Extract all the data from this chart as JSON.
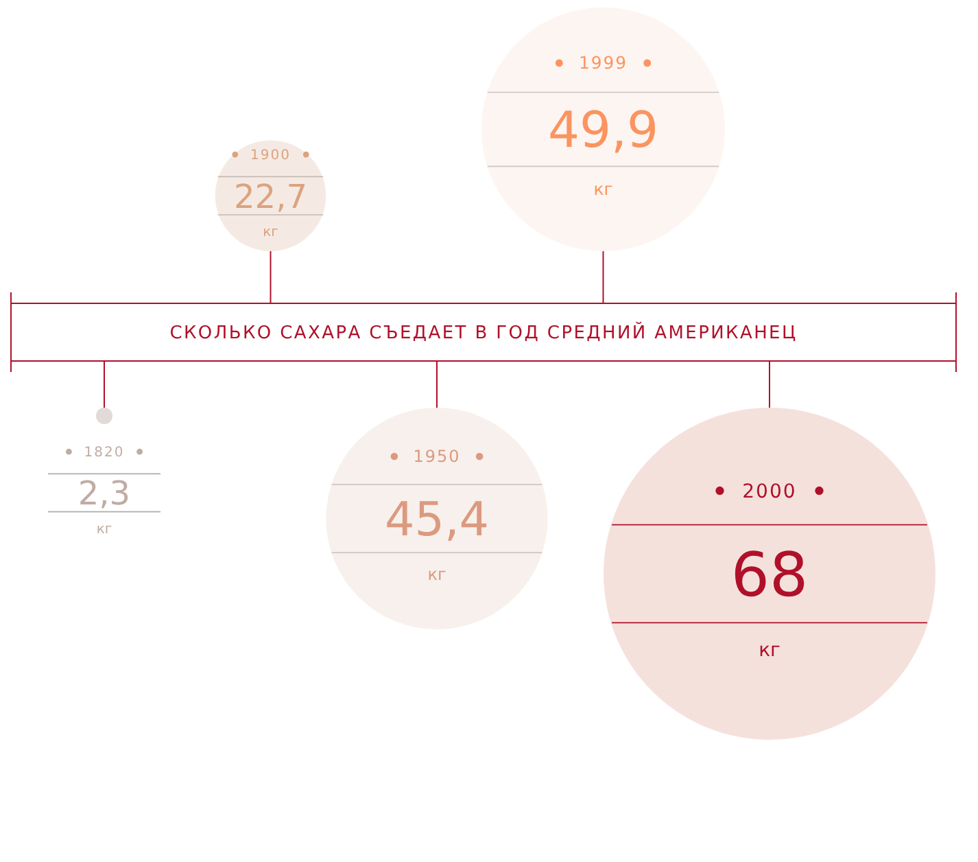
{
  "chart_data": {
    "type": "other",
    "title": "СКОЛЬКО САХАРА СЪЕДАЕТ В ГОД СРЕДНИЙ АМЕРИКАНЕЦ",
    "categories": [
      "1820",
      "1900",
      "1950",
      "1999",
      "2000"
    ],
    "values": [
      2.3,
      22.7,
      45.4,
      49.9,
      68
    ],
    "value_labels": [
      "2,3",
      "22,7",
      "45,4",
      "49,9",
      "68"
    ],
    "ylabel": "кг",
    "colors": [
      "#dcd3d0",
      "#f3e6de",
      "#f7ede9",
      "#fdf3ee",
      "#f3dcd6"
    ]
  }
}
